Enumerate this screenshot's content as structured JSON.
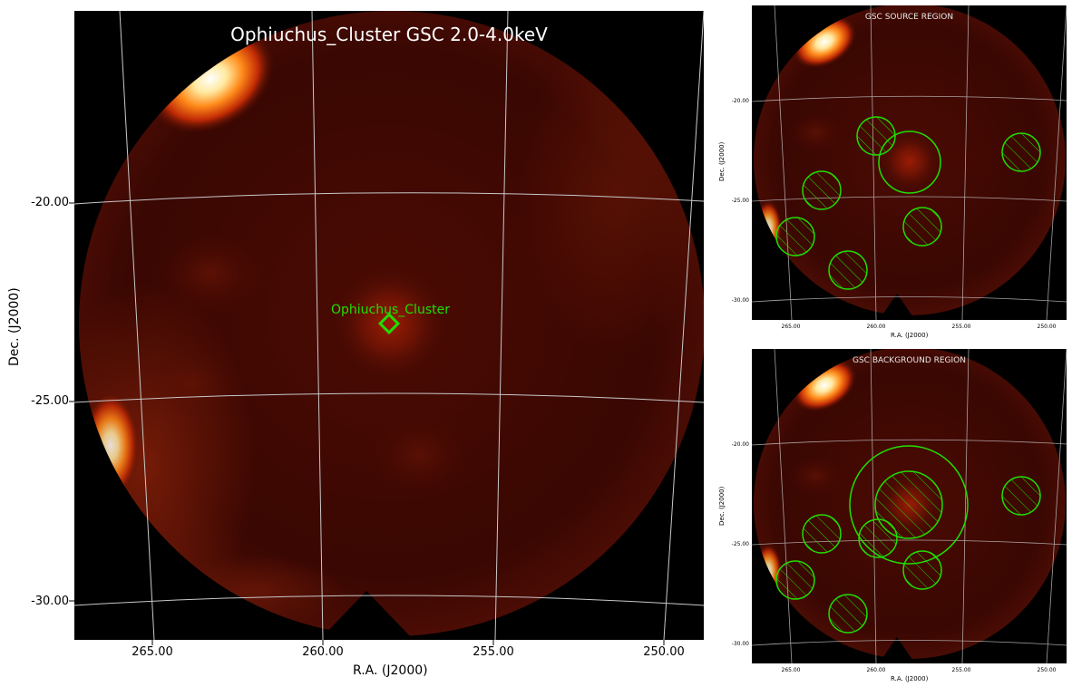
{
  "main": {
    "title": "Ophiuchus_Cluster GSC 2.0-4.0keV",
    "source_label": "Ophiuchus_Cluster",
    "xlabel": "R.A. (J2000)",
    "ylabel": "Dec. (J2000)",
    "xticks": [
      "265.00",
      "260.00",
      "255.00",
      "250.00"
    ],
    "yticks": [
      "-20.00",
      "-25.00",
      "-30.00"
    ],
    "marker_color": "#22dd00",
    "grid_color": "#cccccc"
  },
  "source_panel": {
    "title": "GSC SOURCE REGION",
    "xlabel": "R.A. (J2000)",
    "ylabel": "Dec. (J2000)",
    "xticks": [
      "265.00",
      "260.00",
      "255.00",
      "250.00"
    ],
    "yticks": [
      "-20.00",
      "-25.00",
      "-30.00"
    ],
    "region_color": "#22dd00"
  },
  "background_panel": {
    "title": "GSC BACKGROUND REGION",
    "xlabel": "R.A. (J2000)",
    "ylabel": "Dec. (J2000)",
    "xticks": [
      "265.00",
      "260.00",
      "255.00",
      "250.00"
    ],
    "yticks": [
      "-20.00",
      "-25.00",
      "-30.00"
    ],
    "region_color": "#22dd00"
  }
}
